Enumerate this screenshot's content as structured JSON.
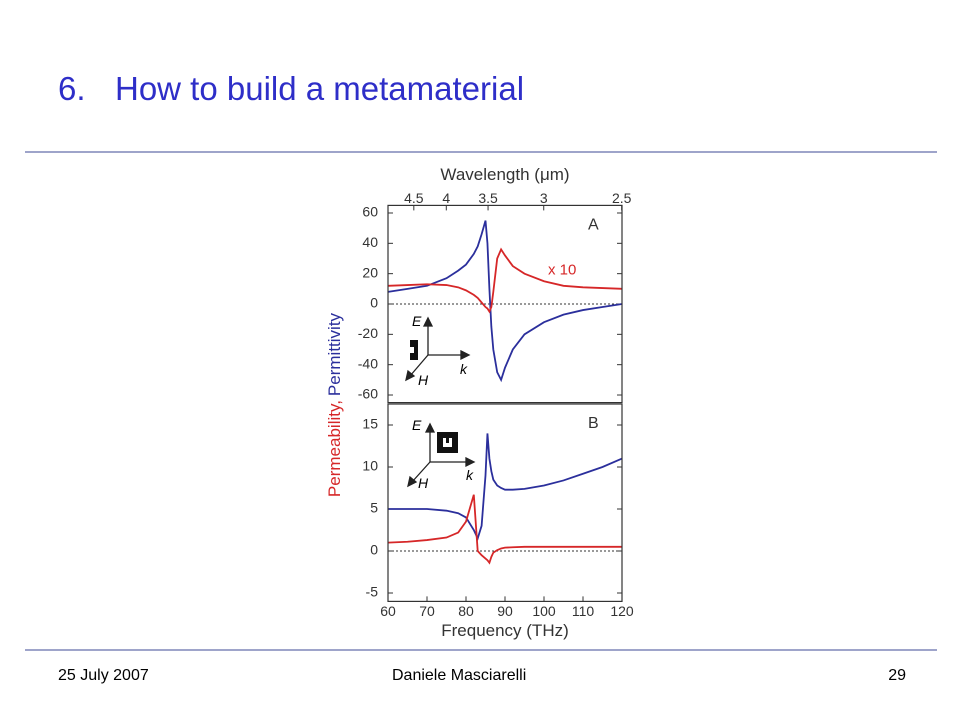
{
  "header": {
    "number": "6.",
    "title": "How to build a metamaterial"
  },
  "figure": {
    "top_axis_label": "Wavelength (μm)",
    "x2ticks": [
      4.5,
      4,
      3.5,
      3,
      2.5
    ],
    "xlabel": "Frequency (THz)",
    "ylabel": [
      {
        "text": "Permeability,",
        "color": "#d62728"
      },
      {
        "text": "Permittivity",
        "color": "#2b2f9c"
      }
    ],
    "inset": [
      "E",
      "H",
      "k"
    ]
  },
  "chart_data": [
    {
      "type": "line",
      "panel": "A",
      "annotation": "x 10",
      "x": [
        60,
        65,
        70,
        75,
        78,
        80,
        82,
        83,
        84,
        85,
        85.5,
        86,
        86.5,
        87,
        88,
        89,
        90,
        92,
        95,
        100,
        105,
        110,
        115,
        120
      ],
      "xlim": [
        60,
        120
      ],
      "ylim": [
        -65,
        65
      ],
      "yticks": [
        60,
        40,
        20,
        0,
        -20,
        -40,
        -60
      ],
      "series": [
        {
          "color": "#2b2f9c",
          "values": [
            8,
            10,
            12,
            17,
            22,
            26,
            33,
            38,
            46,
            55,
            40,
            10,
            -15,
            -30,
            -45,
            -50,
            -42,
            -30,
            -20,
            -12,
            -7,
            -4,
            -2,
            0
          ]
        },
        {
          "color": "#d62728",
          "values": [
            12,
            12.5,
            13,
            12.5,
            11,
            9,
            6,
            4,
            1,
            -2,
            -3,
            -5,
            -2,
            8,
            30,
            36,
            32,
            25,
            20,
            15,
            12,
            11,
            10.5,
            10
          ]
        }
      ]
    },
    {
      "type": "line",
      "panel": "B",
      "x": [
        60,
        65,
        70,
        75,
        78,
        80,
        82,
        83,
        84,
        85,
        85.5,
        86,
        86.5,
        87,
        88,
        89,
        90,
        92,
        95,
        100,
        105,
        110,
        115,
        120
      ],
      "xlim": [
        60,
        120
      ],
      "ylim": [
        -6,
        17.5
      ],
      "yticks": [
        15,
        10,
        5,
        0,
        -5
      ],
      "xticks": [
        60,
        70,
        80,
        90,
        100,
        110,
        120
      ],
      "series": [
        {
          "color": "#2b2f9c",
          "values": [
            5,
            5,
            5,
            4.8,
            4.5,
            4,
            2.5,
            1.5,
            3,
            9,
            14,
            11,
            9.5,
            8.5,
            7.8,
            7.5,
            7.3,
            7.3,
            7.4,
            7.8,
            8.4,
            9.2,
            10,
            11
          ]
        },
        {
          "color": "#d62728",
          "values": [
            1,
            1.1,
            1.3,
            1.6,
            2.2,
            3.5,
            6.7,
            0,
            -0.5,
            -0.9,
            -1.1,
            -1.4,
            -0.7,
            -0.2,
            0.1,
            0.3,
            0.4,
            0.45,
            0.5,
            0.5,
            0.5,
            0.5,
            0.5,
            0.5
          ]
        }
      ]
    }
  ],
  "footer": {
    "date": "25 July 2007",
    "author": "Daniele Masciarelli",
    "page": "29"
  }
}
